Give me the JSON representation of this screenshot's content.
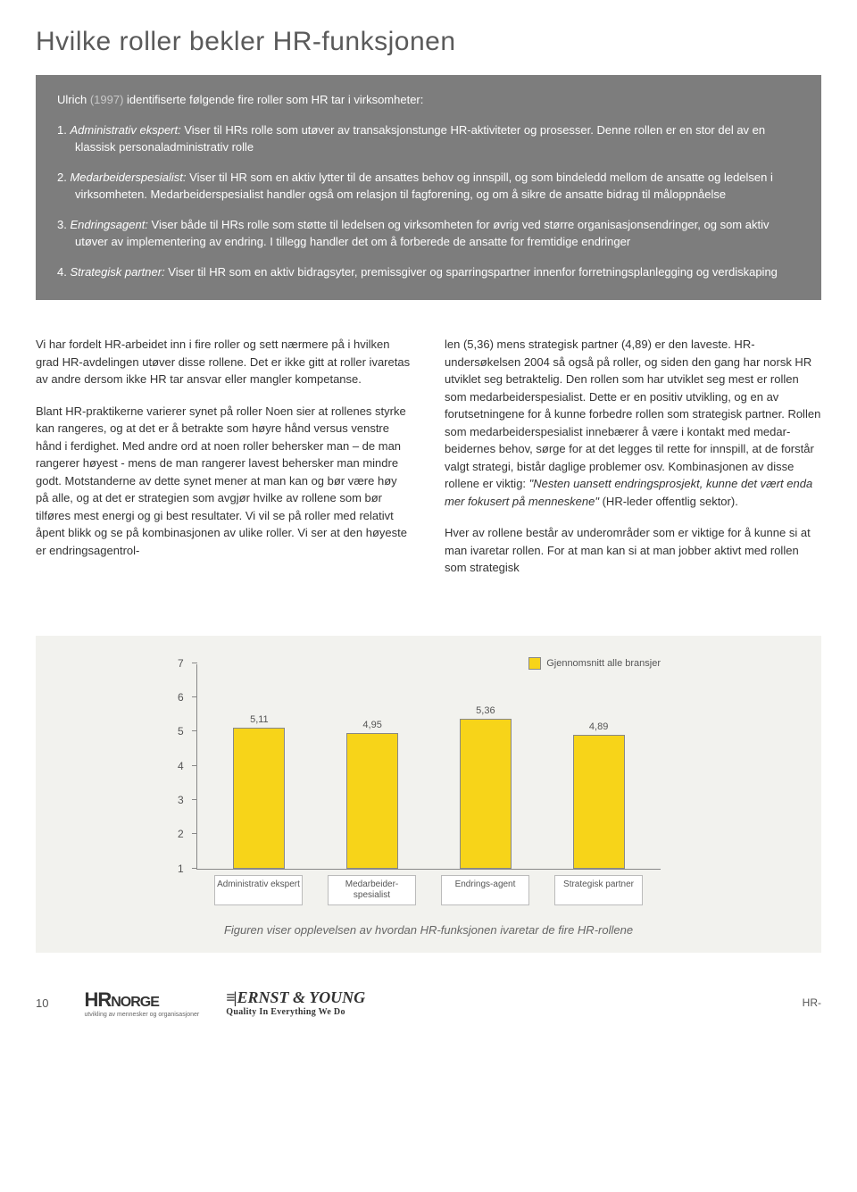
{
  "title": "Hvilke roller bekler HR-funksjonen",
  "box": {
    "intro_prefix": "Ulrich ",
    "intro_author": "(1997)",
    "intro_rest": " identifiserte følgende fire roller som HR tar i virksomheter:",
    "items": [
      {
        "num": "1. ",
        "label": "Administrativ ekspert:",
        "text": " Viser til HRs rolle som utøver av transaksjonstunge HR-aktiviteter og prosesser. Denne rollen er en stor del av en klassisk personaladministrativ rolle"
      },
      {
        "num": "2. ",
        "label": "Medarbeiderspesialist:",
        "text": " Viser til HR som en aktiv lytter til de ansattes behov og innspill, og som bindeledd mellom de ansatte og ledelsen i virksomheten. Medarbeiderspesialist handler også om relasjon til fagforening, og om å sikre de ansatte bidrag til måloppnåelse"
      },
      {
        "num": "3. ",
        "label": "Endringsagent:",
        "text": " Viser både til HRs rolle som støtte til ledelsen og virksomheten for øvrig ved større organisasjonsendringer, og som aktiv utøver av implementering av endring. I tillegg handler det om å forberede de ansatte for fremtidige endringer"
      },
      {
        "num": "4. ",
        "label": "Strategisk partner:",
        "text": " Viser til HR som en aktiv bidragsyter, premissgiver og sparringspartner innenfor forretningsplanlegging og verdiskaping"
      }
    ]
  },
  "col_left": {
    "p1": "Vi har fordelt HR-arbeidet inn i fire roller og sett nærmere på i hvilken grad HR-avdelingen utøver disse rollene. Det er ikke gitt at roller ivaretas av andre dersom ikke HR tar ansvar eller mangler kompetanse.",
    "p2": "Blant HR-praktikerne varierer synet på roller Noen sier at rollenes styrke kan rangeres, og at det er å betrakte som høyre hånd versus venstre hånd i ferdighet. Med andre ord at noen roller behersker man – de man rangerer høyest - mens de man rangerer lavest behersker man mindre godt. Motstanderne av dette synet mener at man kan og bør være høy på alle, og at det er strategien som avgjør hvilke av rollene som bør tilføres mest energi og gi best resultater. Vi vil se på roller med relativt åpent blikk og se på kombinasjonen av ulike roller. Vi ser at den høyeste er endringsagentrol-"
  },
  "col_right": {
    "p1a": "len (5,36) mens strategisk partner (4,89) er den laveste. HR-undersøkelsen 2004 så også på roller, og siden den gang har norsk HR utviklet seg betraktelig. Den rollen som har utviklet seg mest er rollen som medarbeiderspesialist. Dette er en positiv utvikling, og en av forutsetningene for å kunne forbedre rollen som strategisk partner. Rollen som medarbeider­spesialist innebærer å være i kontakt med medar­beidernes behov, sørge for at det legges til rette for innspill, at de forstår valgt strategi, bistår daglige problemer osv. Kombinasjonen av disse rollene er viktig: ",
    "p1_quote": "\"Nesten uansett endringsprosjekt, kunne det vært enda mer fokusert på menneskene\"",
    "p1b": " (HR-leder offentlig sektor).",
    "p2": "Hver av rollene består av underområder som er viktige for å kunne si at man ivaretar rollen. For at man kan si at man jobber aktivt med rollen som strategisk"
  },
  "chart": {
    "type": "bar",
    "legend_label": "Gjennomsnitt alle bransjer",
    "legend_color": "#f7d419",
    "bar_color": "#f7d419",
    "bar_border": "#888888",
    "background": "#f2f2ee",
    "ylim": [
      1,
      7
    ],
    "yticks": [
      1,
      2,
      3,
      4,
      5,
      6,
      7
    ],
    "categories": [
      "Administrativ ekspert",
      "Medarbeider-spesialist",
      "Endrings-agent",
      "Strategisk partner"
    ],
    "values": [
      5.11,
      4.95,
      5.36,
      4.89
    ],
    "value_labels": [
      "5,11",
      "4,95",
      "5,36",
      "4,89"
    ],
    "caption": "Figuren viser opplevelsen av hvordan HR-funksjonen ivaretar de fire HR-rollene"
  },
  "footer": {
    "page": "10",
    "hr_big": "HR",
    "hr_small": "NORGE",
    "hr_sub": "utvikling av mennesker og organisasjoner",
    "ey_name": "ERNST & YOUNG",
    "ey_tag": "Quality In Everything We Do",
    "right": "HR-"
  }
}
